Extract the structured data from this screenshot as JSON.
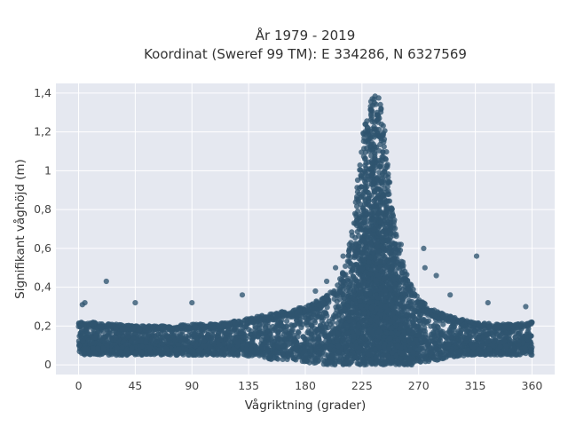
{
  "chart_data": {
    "type": "scatter",
    "title": [
      "År 1979 - 2019",
      "Koordinat (Sweref 99 TM): E 334286, N 6327569"
    ],
    "xlabel": "Vågriktning (grader)",
    "ylabel": "Signifikant våghöjd (m)",
    "xlim": [
      -18,
      378
    ],
    "ylim": [
      -0.05,
      1.45
    ],
    "x_ticks": [
      0,
      45,
      90,
      135,
      180,
      225,
      270,
      315,
      360
    ],
    "x_tick_labels": [
      "0",
      "45",
      "90",
      "135",
      "180",
      "225",
      "270",
      "315",
      "360"
    ],
    "y_ticks": [
      0,
      0.2,
      0.4,
      0.6,
      0.8,
      1.0,
      1.2,
      1.4
    ],
    "y_tick_labels": [
      "0",
      "0,2",
      "0,4",
      "0,6",
      "0,8",
      "1",
      "1,2",
      "1,4"
    ],
    "grid": true,
    "legend": false,
    "marker_color": "#2f5570",
    "plot_background": "#e5e8f0",
    "grid_color": "#ffffff",
    "envelope": {
      "x": [
        0,
        10,
        20,
        30,
        45,
        60,
        75,
        90,
        105,
        120,
        135,
        150,
        165,
        180,
        195,
        205,
        212,
        218,
        222,
        226,
        230,
        233,
        236,
        238,
        240,
        242,
        245,
        248,
        252,
        258,
        265,
        270,
        280,
        290,
        300,
        315,
        330,
        345,
        360
      ],
      "y_low": [
        0.05,
        0.05,
        0.05,
        0.05,
        0.05,
        0.05,
        0.05,
        0.05,
        0.05,
        0.05,
        0.04,
        0.03,
        0.02,
        0.01,
        0.0,
        0.0,
        0.0,
        0.0,
        0.0,
        0.0,
        0.0,
        0.0,
        0.0,
        0.0,
        0.0,
        0.0,
        0.0,
        0.0,
        0.0,
        0.0,
        0.0,
        0.01,
        0.02,
        0.03,
        0.04,
        0.05,
        0.05,
        0.05,
        0.05
      ],
      "y_high": [
        0.22,
        0.22,
        0.21,
        0.21,
        0.2,
        0.2,
        0.2,
        0.21,
        0.21,
        0.22,
        0.24,
        0.26,
        0.28,
        0.3,
        0.35,
        0.4,
        0.52,
        0.75,
        0.98,
        1.2,
        1.32,
        1.38,
        1.4,
        1.39,
        1.36,
        1.3,
        1.1,
        0.88,
        0.7,
        0.52,
        0.4,
        0.34,
        0.29,
        0.26,
        0.24,
        0.22,
        0.21,
        0.21,
        0.22
      ]
    },
    "outliers": [
      {
        "x": 3,
        "y": 0.31
      },
      {
        "x": 5,
        "y": 0.32
      },
      {
        "x": 22,
        "y": 0.43
      },
      {
        "x": 45,
        "y": 0.32
      },
      {
        "x": 90,
        "y": 0.32
      },
      {
        "x": 130,
        "y": 0.36
      },
      {
        "x": 188,
        "y": 0.38
      },
      {
        "x": 197,
        "y": 0.43
      },
      {
        "x": 204,
        "y": 0.5
      },
      {
        "x": 210,
        "y": 0.56
      },
      {
        "x": 215,
        "y": 0.62
      },
      {
        "x": 256,
        "y": 0.62
      },
      {
        "x": 274,
        "y": 0.6
      },
      {
        "x": 275,
        "y": 0.5
      },
      {
        "x": 284,
        "y": 0.46
      },
      {
        "x": 295,
        "y": 0.36
      },
      {
        "x": 316,
        "y": 0.56
      },
      {
        "x": 325,
        "y": 0.32
      },
      {
        "x": 355,
        "y": 0.3
      }
    ]
  }
}
